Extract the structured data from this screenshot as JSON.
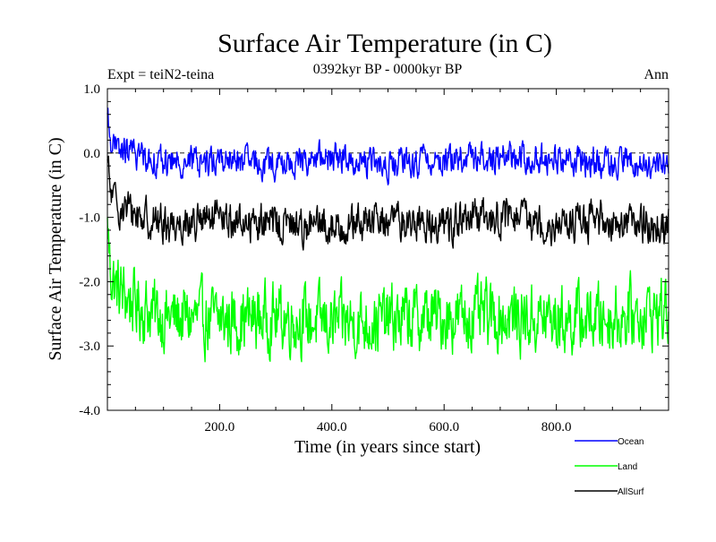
{
  "chart_data": {
    "type": "line",
    "title": "Surface Air Temperature (in C)",
    "subtitle_left": "Expt = teiN2-teina",
    "subtitle_center": "0392kyr BP - 0000kyr BP",
    "subtitle_right": "Ann",
    "xlabel": "Time (in years since start)",
    "ylabel": "Surface Air Temperature (in C)",
    "xlim": [
      0,
      1000
    ],
    "ylim": [
      -4.0,
      1.0
    ],
    "x_ticks": [
      200,
      400,
      600,
      800
    ],
    "x_tick_labels": [
      "200.0",
      "400.0",
      "600.0",
      "800.0"
    ],
    "y_ticks": [
      1.0,
      0.0,
      -1.0,
      -2.0,
      -3.0,
      -4.0
    ],
    "y_tick_labels": [
      "1.0",
      "0.0",
      "-1.0",
      "-2.0",
      "-3.0",
      "-4.0"
    ],
    "reference_line": 0.0,
    "legend_position": "bottom-right, outside plot",
    "series": [
      {
        "name": "Ocean",
        "color": "#0000ff",
        "start_value": 0.6,
        "mean": -0.1,
        "amplitude": 0.35,
        "points": [
          [
            0,
            0.6
          ],
          [
            5,
            0.25
          ],
          [
            15,
            0.05
          ],
          [
            50,
            0.0
          ],
          [
            100,
            -0.15
          ],
          [
            200,
            -0.1
          ],
          [
            300,
            -0.2
          ],
          [
            400,
            -0.05
          ],
          [
            500,
            -0.2
          ],
          [
            600,
            -0.1
          ],
          [
            700,
            -0.05
          ],
          [
            800,
            -0.1
          ],
          [
            900,
            -0.15
          ],
          [
            1000,
            -0.2
          ]
        ]
      },
      {
        "name": "Land",
        "color": "#00ff00",
        "start_value": -1.0,
        "mean": -2.55,
        "amplitude": 0.8,
        "points": [
          [
            0,
            -1.0
          ],
          [
            5,
            -1.8
          ],
          [
            15,
            -2.1
          ],
          [
            50,
            -2.35
          ],
          [
            100,
            -2.55
          ],
          [
            200,
            -2.6
          ],
          [
            300,
            -2.55
          ],
          [
            400,
            -2.65
          ],
          [
            500,
            -2.6
          ],
          [
            600,
            -2.55
          ],
          [
            700,
            -2.55
          ],
          [
            800,
            -2.6
          ],
          [
            900,
            -2.55
          ],
          [
            1000,
            -2.45
          ]
        ]
      },
      {
        "name": "AllSurf",
        "color": "#000000",
        "start_value": -0.1,
        "mean": -1.05,
        "amplitude": 0.45,
        "points": [
          [
            0,
            -0.1
          ],
          [
            5,
            -0.6
          ],
          [
            15,
            -0.8
          ],
          [
            50,
            -0.95
          ],
          [
            100,
            -1.1
          ],
          [
            200,
            -1.05
          ],
          [
            300,
            -1.1
          ],
          [
            400,
            -1.15
          ],
          [
            500,
            -1.05
          ],
          [
            600,
            -1.1
          ],
          [
            700,
            -1.0
          ],
          [
            800,
            -1.1
          ],
          [
            900,
            -1.05
          ],
          [
            1000,
            -1.15
          ]
        ]
      }
    ]
  }
}
